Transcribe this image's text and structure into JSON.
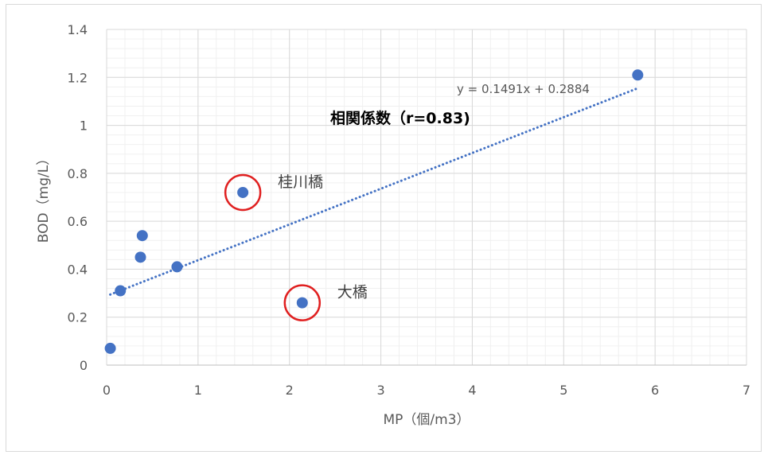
{
  "chart_data": {
    "type": "scatter",
    "xlabel": "MP（個/m3）",
    "ylabel": "BOD（mg/L）",
    "xlim": [
      0,
      7
    ],
    "ylim": [
      0,
      1.4
    ],
    "xticks": [
      "0",
      "1",
      "2",
      "3",
      "4",
      "5",
      "6",
      "7"
    ],
    "yticks": [
      "0",
      "0.2",
      "0.4",
      "0.6",
      "0.8",
      "1",
      "1.2",
      "1.4"
    ],
    "x_major_step": 1,
    "y_major_step": 0.2,
    "grid": true,
    "minor_grid": true,
    "series": [
      {
        "points": [
          {
            "x": 0.04,
            "y": 0.07
          },
          {
            "x": 0.15,
            "y": 0.31
          },
          {
            "x": 0.37,
            "y": 0.45
          },
          {
            "x": 0.39,
            "y": 0.54
          },
          {
            "x": 0.77,
            "y": 0.41
          },
          {
            "x": 1.49,
            "y": 0.72
          },
          {
            "x": 2.14,
            "y": 0.26
          },
          {
            "x": 5.81,
            "y": 1.21
          }
        ],
        "color": "#4472c4"
      }
    ],
    "trendline": {
      "slope": 0.1491,
      "intercept": 0.2884,
      "x_range": [
        0.04,
        5.81
      ],
      "color": "#4472c4",
      "equation_label": "y = 0.1491x + 0.2884"
    },
    "correlation_label": "相関係数（r=0.83)",
    "highlights": [
      {
        "label": "桂川橋",
        "x": 1.49,
        "y": 0.72,
        "color": "#e02020"
      },
      {
        "label": "大橋",
        "x": 2.14,
        "y": 0.26,
        "color": "#e02020"
      }
    ]
  }
}
